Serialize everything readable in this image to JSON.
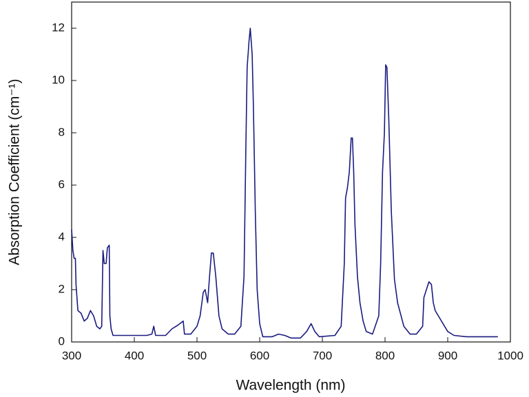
{
  "chart_data": {
    "type": "line",
    "xlabel": "Wavelength (nm)",
    "ylabel": "Absorption Coefficient (cm⁻¹)",
    "xlim": [
      300,
      1000
    ],
    "xticks": [
      300,
      400,
      500,
      600,
      700,
      800,
      900,
      1000
    ],
    "ylim": [
      0,
      13
    ],
    "yticks": [
      0,
      2,
      4,
      6,
      8,
      10,
      12
    ],
    "x": [
      300,
      302,
      304,
      306,
      307,
      310,
      315,
      320,
      325,
      330,
      335,
      340,
      345,
      348,
      350,
      352,
      355,
      357,
      360,
      361,
      363,
      366,
      380,
      400,
      420,
      428,
      431,
      434,
      450,
      460,
      470,
      478,
      480,
      490,
      500,
      505,
      510,
      513,
      517,
      520,
      523,
      526,
      530,
      535,
      540,
      550,
      560,
      570,
      575,
      578,
      580,
      583,
      585,
      588,
      590,
      593,
      596,
      600,
      605,
      620,
      630,
      640,
      650,
      665,
      675,
      682,
      688,
      695,
      720,
      730,
      735,
      737,
      740,
      743,
      746,
      748,
      750,
      752,
      756,
      760,
      765,
      770,
      780,
      790,
      793,
      796,
      799,
      801,
      803,
      806,
      810,
      815,
      820,
      830,
      840,
      850,
      860,
      862,
      866,
      870,
      874,
      877,
      880,
      890,
      900,
      910,
      930,
      980
    ],
    "series": [
      {
        "color": "#1a1a80",
        "values": [
          4.3,
          3.5,
          3.2,
          3.2,
          2.2,
          1.2,
          1.1,
          0.8,
          0.9,
          1.2,
          1.0,
          0.6,
          0.5,
          0.6,
          3.5,
          3.0,
          3.0,
          3.6,
          3.7,
          1.0,
          0.5,
          0.25,
          0.25,
          0.25,
          0.25,
          0.3,
          0.6,
          0.25,
          0.25,
          0.5,
          0.65,
          0.8,
          0.3,
          0.3,
          0.6,
          1.0,
          1.9,
          2.0,
          1.5,
          2.5,
          3.4,
          3.4,
          2.5,
          1.0,
          0.5,
          0.3,
          0.3,
          0.6,
          2.5,
          7.5,
          10.5,
          11.5,
          12.0,
          11.0,
          9.0,
          5.0,
          2.0,
          0.7,
          0.2,
          0.2,
          0.3,
          0.25,
          0.15,
          0.15,
          0.4,
          0.7,
          0.4,
          0.2,
          0.25,
          0.6,
          3.0,
          5.5,
          5.9,
          6.5,
          7.8,
          7.8,
          6.5,
          4.5,
          2.5,
          1.5,
          0.8,
          0.4,
          0.3,
          1.0,
          3.0,
          6.5,
          8.0,
          10.6,
          10.5,
          8.5,
          5.0,
          2.4,
          1.5,
          0.6,
          0.3,
          0.3,
          0.6,
          1.7,
          2.0,
          2.3,
          2.2,
          1.5,
          1.2,
          0.8,
          0.4,
          0.25,
          0.2,
          0.2
        ]
      }
    ]
  }
}
